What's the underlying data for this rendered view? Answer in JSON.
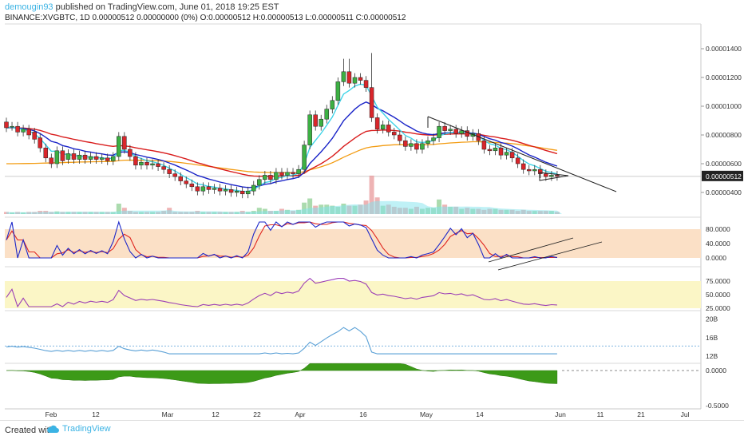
{
  "header": {
    "user": "demougin93",
    "published": "published on TradingView.com, June 01, 2018 19:25 EST",
    "symbol_line": "BINANCE:XVGBTC, 1D  0.00000512 0.00000000 (0%) O:0.00000512 H:0.00000513 L:0.00000511 C:0.00000512"
  },
  "footer": {
    "created_with": "Created with",
    "brand": "TradingView"
  },
  "colors": {
    "up": "#3cb043",
    "down": "#d9262b",
    "ema_fast": "#3fd4e8",
    "ema_mid": "#1a24c8",
    "ema_slow": "#d91c1c",
    "ema_long": "#f39c12",
    "stoch_k": "#1c27c9",
    "stoch_d": "#e0261f",
    "rsi": "#9c3fb6",
    "vol": "#5aa0d6",
    "hist": "#3c9a18"
  },
  "chart_data": [
    {
      "type": "candlestick",
      "price_axis": {
        "ticks": [
          "0.00001400",
          "0.00001200",
          "0.00001000",
          "0.00000800",
          "0.00000600",
          "0.00000400"
        ],
        "last": "0.00000512",
        "ylim": [
          2.5e-06,
          1.52e-05
        ]
      },
      "x_axis_labels": [
        "Feb",
        "12",
        "Mar",
        "12",
        "22",
        "Apr",
        "16",
        "May",
        "14",
        "Jun",
        "11",
        "21",
        "Jul"
      ],
      "last_price": 5.12e-06,
      "candles": [
        {
          "x": 0,
          "o": 8.9,
          "c": 8.5
        },
        {
          "x": 1,
          "o": 8.6,
          "c": 8.6
        },
        {
          "x": 2,
          "o": 8.6,
          "c": 8.2
        },
        {
          "x": 3,
          "o": 8.2,
          "c": 8.4
        },
        {
          "x": 4,
          "o": 8.4,
          "c": 8.0
        },
        {
          "x": 5,
          "o": 8.2,
          "c": 7.7
        },
        {
          "x": 6,
          "o": 7.8,
          "c": 7.1
        },
        {
          "x": 7,
          "o": 7.1,
          "c": 6.4
        },
        {
          "x": 8,
          "o": 6.4,
          "c": 6.0
        },
        {
          "x": 9,
          "o": 6.0,
          "c": 6.9
        },
        {
          "x": 10,
          "o": 6.9,
          "c": 6.2
        },
        {
          "x": 11,
          "o": 6.3,
          "c": 6.7
        },
        {
          "x": 12,
          "o": 6.7,
          "c": 6.3
        },
        {
          "x": 13,
          "o": 6.3,
          "c": 6.6
        },
        {
          "x": 14,
          "o": 6.6,
          "c": 6.3
        },
        {
          "x": 15,
          "o": 6.3,
          "c": 6.5
        },
        {
          "x": 16,
          "o": 6.5,
          "c": 6.3
        },
        {
          "x": 17,
          "o": 6.3,
          "c": 6.4
        },
        {
          "x": 18,
          "o": 6.4,
          "c": 6.2
        },
        {
          "x": 19,
          "o": 6.2,
          "c": 6.5
        },
        {
          "x": 20,
          "o": 6.5,
          "c": 7.9
        },
        {
          "x": 21,
          "o": 7.9,
          "c": 7.0
        },
        {
          "x": 22,
          "o": 7.0,
          "c": 6.5
        },
        {
          "x": 23,
          "o": 6.5,
          "c": 5.9
        },
        {
          "x": 24,
          "o": 5.9,
          "c": 6.1
        },
        {
          "x": 25,
          "o": 6.1,
          "c": 5.9
        },
        {
          "x": 26,
          "o": 5.9,
          "c": 6.0
        },
        {
          "x": 27,
          "o": 6.0,
          "c": 5.8
        },
        {
          "x": 28,
          "o": 5.8,
          "c": 5.6
        },
        {
          "x": 29,
          "o": 5.6,
          "c": 5.3
        },
        {
          "x": 30,
          "o": 5.3,
          "c": 5.1
        },
        {
          "x": 31,
          "o": 5.1,
          "c": 4.8
        },
        {
          "x": 32,
          "o": 4.8,
          "c": 4.6
        },
        {
          "x": 33,
          "o": 4.6,
          "c": 4.4
        },
        {
          "x": 34,
          "o": 4.4,
          "c": 4.1
        },
        {
          "x": 35,
          "o": 4.1,
          "c": 4.4
        },
        {
          "x": 36,
          "o": 4.4,
          "c": 4.2
        },
        {
          "x": 37,
          "o": 4.2,
          "c": 4.3
        },
        {
          "x": 38,
          "o": 4.3,
          "c": 4.1
        },
        {
          "x": 39,
          "o": 4.1,
          "c": 4.2
        },
        {
          "x": 40,
          "o": 4.2,
          "c": 4.0
        },
        {
          "x": 41,
          "o": 4.0,
          "c": 4.1
        },
        {
          "x": 42,
          "o": 4.1,
          "c": 3.9
        },
        {
          "x": 43,
          "o": 3.9,
          "c": 4.1
        },
        {
          "x": 44,
          "o": 4.1,
          "c": 4.5
        },
        {
          "x": 45,
          "o": 4.5,
          "c": 4.9
        },
        {
          "x": 46,
          "o": 4.9,
          "c": 5.2
        },
        {
          "x": 47,
          "o": 5.2,
          "c": 4.9
        },
        {
          "x": 48,
          "o": 4.9,
          "c": 5.4
        },
        {
          "x": 49,
          "o": 5.4,
          "c": 5.2
        },
        {
          "x": 50,
          "o": 5.2,
          "c": 5.4
        },
        {
          "x": 51,
          "o": 5.4,
          "c": 5.3
        },
        {
          "x": 52,
          "o": 5.3,
          "c": 5.6
        },
        {
          "x": 53,
          "o": 5.6,
          "c": 7.3
        },
        {
          "x": 54,
          "o": 7.3,
          "c": 9.4
        },
        {
          "x": 55,
          "o": 9.4,
          "c": 8.6
        },
        {
          "x": 56,
          "o": 8.6,
          "c": 9.1
        },
        {
          "x": 57,
          "o": 9.1,
          "c": 9.8
        },
        {
          "x": 58,
          "o": 9.8,
          "c": 10.4
        },
        {
          "x": 59,
          "o": 10.4,
          "c": 11.7
        },
        {
          "x": 60,
          "o": 11.7,
          "c": 12.4
        },
        {
          "x": 61,
          "o": 12.4,
          "c": 11.6
        },
        {
          "x": 62,
          "o": 11.6,
          "c": 12.0
        },
        {
          "x": 63,
          "o": 12.0,
          "c": 11.8
        },
        {
          "x": 64,
          "o": 11.8,
          "c": 11.3
        },
        {
          "x": 65,
          "o": 11.3,
          "c": 9.2
        },
        {
          "x": 66,
          "o": 9.2,
          "c": 8.4
        },
        {
          "x": 67,
          "o": 8.4,
          "c": 8.7
        },
        {
          "x": 68,
          "o": 8.7,
          "c": 8.2
        },
        {
          "x": 69,
          "o": 8.2,
          "c": 8.0
        },
        {
          "x": 70,
          "o": 8.0,
          "c": 7.6
        },
        {
          "x": 71,
          "o": 7.6,
          "c": 7.2
        },
        {
          "x": 72,
          "o": 7.2,
          "c": 7.4
        },
        {
          "x": 73,
          "o": 7.4,
          "c": 7.0
        },
        {
          "x": 74,
          "o": 7.0,
          "c": 7.4
        },
        {
          "x": 75,
          "o": 7.4,
          "c": 7.6
        },
        {
          "x": 76,
          "o": 7.6,
          "c": 7.8
        },
        {
          "x": 77,
          "o": 7.8,
          "c": 8.6
        },
        {
          "x": 78,
          "o": 8.6,
          "c": 8.3
        },
        {
          "x": 79,
          "o": 8.3,
          "c": 8.4
        },
        {
          "x": 80,
          "o": 8.4,
          "c": 8.1
        },
        {
          "x": 81,
          "o": 8.1,
          "c": 8.3
        },
        {
          "x": 82,
          "o": 8.3,
          "c": 7.9
        },
        {
          "x": 83,
          "o": 7.9,
          "c": 8.1
        },
        {
          "x": 84,
          "o": 8.1,
          "c": 7.6
        },
        {
          "x": 85,
          "o": 7.6,
          "c": 7.0
        },
        {
          "x": 86,
          "o": 7.0,
          "c": 6.9
        },
        {
          "x": 87,
          "o": 6.9,
          "c": 7.1
        },
        {
          "x": 88,
          "o": 7.1,
          "c": 6.6
        },
        {
          "x": 89,
          "o": 6.6,
          "c": 6.8
        },
        {
          "x": 90,
          "o": 6.8,
          "c": 6.4
        },
        {
          "x": 91,
          "o": 6.4,
          "c": 6.0
        },
        {
          "x": 92,
          "o": 6.0,
          "c": 5.6
        },
        {
          "x": 93,
          "o": 5.6,
          "c": 5.5
        },
        {
          "x": 94,
          "o": 5.5,
          "c": 5.6
        },
        {
          "x": 95,
          "o": 5.6,
          "c": 5.3
        },
        {
          "x": 96,
          "o": 5.3,
          "c": 5.1
        },
        {
          "x": 97,
          "o": 5.1,
          "c": 5.2
        },
        {
          "x": 98,
          "o": 5.2,
          "c": 5.12
        }
      ],
      "volume": [
        0.2,
        0.15,
        0.2,
        0.15,
        0.2,
        0.2,
        0.3,
        0.3,
        0.2,
        0.25,
        0.2,
        0.2,
        0.2,
        0.2,
        0.2,
        0.2,
        0.2,
        0.2,
        0.2,
        0.2,
        1.0,
        0.6,
        0.3,
        0.2,
        0.2,
        0.2,
        0.2,
        0.2,
        0.3,
        0.6,
        0.2,
        0.2,
        0.2,
        0.2,
        0.3,
        0.2,
        0.2,
        0.2,
        0.2,
        0.2,
        0.2,
        0.2,
        0.3,
        0.2,
        0.3,
        0.6,
        0.5,
        0.3,
        0.3,
        0.5,
        0.4,
        0.3,
        0.4,
        1.1,
        1.5,
        0.8,
        0.9,
        0.9,
        0.8,
        0.7,
        1.0,
        0.8,
        0.8,
        0.9,
        1.3,
        3.7,
        1.6,
        0.8,
        0.9,
        0.7,
        0.6,
        0.6,
        0.5,
        0.7,
        0.5,
        0.6,
        0.6,
        1.4,
        0.9,
        0.7,
        0.7,
        0.5,
        0.6,
        0.5,
        0.5,
        0.4,
        0.5,
        0.5,
        0.4,
        0.4,
        0.4,
        0.3,
        0.4,
        0.3,
        0.3,
        0.3,
        0.3,
        0.3,
        0.2
      ],
      "stoch_axis": [
        "80.0000",
        "40.0000",
        "0.0000"
      ],
      "rsi_axis": [
        "75.0000",
        "50.0000",
        "25.0000"
      ],
      "obv_axis": [
        "20B",
        "16B",
        "12B"
      ],
      "hist_axis": [
        "0.0000",
        "-0.5000"
      ]
    }
  ]
}
